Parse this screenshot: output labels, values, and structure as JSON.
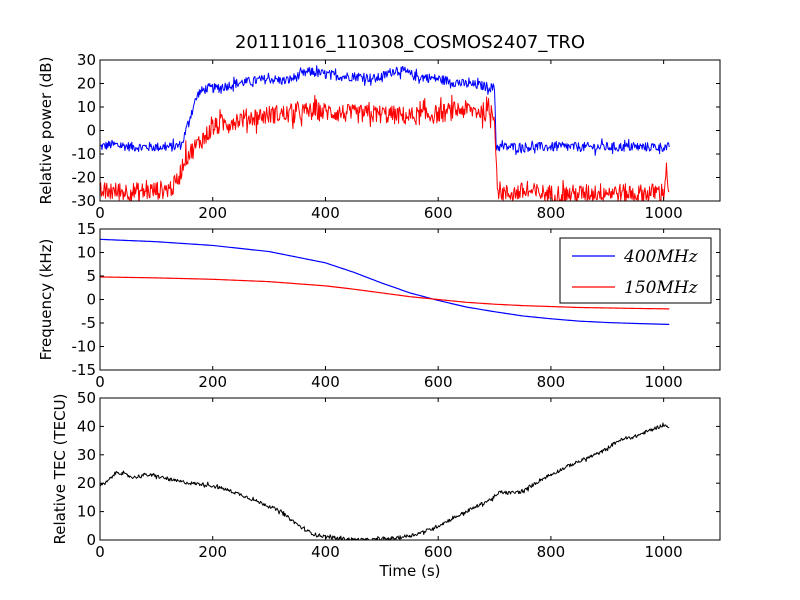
{
  "title": "20111016_110308_COSMOS2407_TRO",
  "colors": {
    "blue": "#0000ff",
    "red": "#ff0000",
    "black": "#000000"
  },
  "chart_data": [
    {
      "type": "line",
      "ylabel": "Relative power (dB)",
      "xlim": [
        0,
        1100
      ],
      "ylim": [
        -30,
        30
      ],
      "xticks": [
        "0",
        "200",
        "400",
        "600",
        "800",
        "1000"
      ],
      "yticks": [
        "-30",
        "-20",
        "-10",
        "0",
        "10",
        "20",
        "30"
      ],
      "grid": false,
      "series": [
        {
          "color": "#0000ff",
          "x": [
            0,
            20,
            60,
            100,
            130,
            145,
            155,
            165,
            175,
            190,
            210,
            240,
            270,
            300,
            330,
            350,
            370,
            400,
            430,
            460,
            490,
            510,
            525,
            540,
            560,
            600,
            640,
            680,
            700,
            703,
            710,
            750,
            800,
            850,
            900,
            950,
            1000,
            1010
          ],
          "y": [
            -7,
            -6,
            -7,
            -7,
            -7,
            -6,
            2,
            10,
            16,
            18,
            18,
            20,
            21,
            22,
            21,
            23,
            25,
            24,
            23,
            23,
            22,
            24,
            26,
            25,
            23,
            22,
            20,
            19,
            18,
            -7,
            -7,
            -7,
            -7,
            -7,
            -7,
            -7,
            -7,
            -7
          ],
          "noise": 2
        },
        {
          "color": "#ff0000",
          "x": [
            0,
            40,
            80,
            120,
            130,
            140,
            150,
            165,
            180,
            200,
            220,
            250,
            280,
            310,
            340,
            360,
            380,
            400,
            450,
            500,
            550,
            600,
            640,
            680,
            700,
            705,
            720,
            750,
            800,
            850,
            900,
            950,
            1000,
            1005,
            1010
          ],
          "y": [
            -26,
            -26,
            -26,
            -25,
            -24,
            -20,
            -12,
            -8,
            -4,
            1,
            3,
            5,
            6,
            7,
            7,
            8,
            8,
            8,
            7,
            7,
            6,
            7,
            9,
            8,
            7,
            -25,
            -27,
            -26,
            -27,
            -27,
            -26,
            -27,
            -26,
            -17,
            -26
          ],
          "noise": 4
        }
      ]
    },
    {
      "type": "line",
      "ylabel": "Frequency (kHz)",
      "xlim": [
        0,
        1100
      ],
      "ylim": [
        -15,
        15
      ],
      "xticks": [
        "0",
        "200",
        "400",
        "600",
        "800",
        "1000"
      ],
      "yticks": [
        "-15",
        "-10",
        "-5",
        "0",
        "5",
        "10",
        "15"
      ],
      "legend": {
        "placement": "top-right"
      },
      "series": [
        {
          "name": "400MHz",
          "color": "#0000ff",
          "x": [
            0,
            100,
            200,
            300,
            400,
            450,
            500,
            550,
            600,
            650,
            700,
            750,
            800,
            850,
            900,
            950,
            1010
          ],
          "y": [
            12.8,
            12.3,
            11.5,
            10.2,
            7.8,
            5.8,
            3.5,
            1.4,
            -0.2,
            -1.6,
            -2.6,
            -3.5,
            -4.1,
            -4.6,
            -4.9,
            -5.1,
            -5.3
          ]
        },
        {
          "name": "150MHz",
          "color": "#ff0000",
          "x": [
            0,
            100,
            200,
            300,
            400,
            450,
            500,
            550,
            600,
            650,
            700,
            750,
            800,
            850,
            900,
            950,
            1010
          ],
          "y": [
            4.8,
            4.6,
            4.3,
            3.8,
            2.9,
            2.2,
            1.4,
            0.6,
            0,
            -0.6,
            -1.0,
            -1.3,
            -1.5,
            -1.7,
            -1.8,
            -1.9,
            -2.0
          ]
        }
      ]
    },
    {
      "type": "line",
      "xlabel": "Time (s)",
      "ylabel": "Relative TEC (TECU)",
      "xlim": [
        0,
        1100
      ],
      "ylim": [
        0,
        50
      ],
      "xticks": [
        "0",
        "200",
        "400",
        "600",
        "800",
        "1000"
      ],
      "yticks": [
        "0",
        "10",
        "20",
        "30",
        "40",
        "50"
      ],
      "series": [
        {
          "color": "#000000",
          "x": [
            0,
            10,
            20,
            30,
            45,
            60,
            80,
            100,
            130,
            160,
            190,
            220,
            250,
            280,
            300,
            320,
            340,
            360,
            380,
            400,
            420,
            450,
            480,
            500,
            530,
            560,
            590,
            620,
            650,
            680,
            700,
            710,
            720,
            750,
            780,
            800,
            830,
            860,
            890,
            920,
            950,
            980,
            1000,
            1010
          ],
          "y": [
            19,
            20,
            22,
            24,
            23,
            22,
            23,
            22.5,
            21,
            20,
            19.5,
            18,
            16,
            13.5,
            12,
            10,
            7,
            4,
            2,
            1.2,
            0.6,
            0.2,
            0,
            0.3,
            0.8,
            2,
            4,
            7,
            10,
            13,
            15,
            17,
            16.5,
            17,
            21,
            23,
            26,
            28.5,
            31,
            35,
            36.5,
            39,
            40.5,
            39.5
          ],
          "noise": 0.6
        }
      ]
    }
  ]
}
